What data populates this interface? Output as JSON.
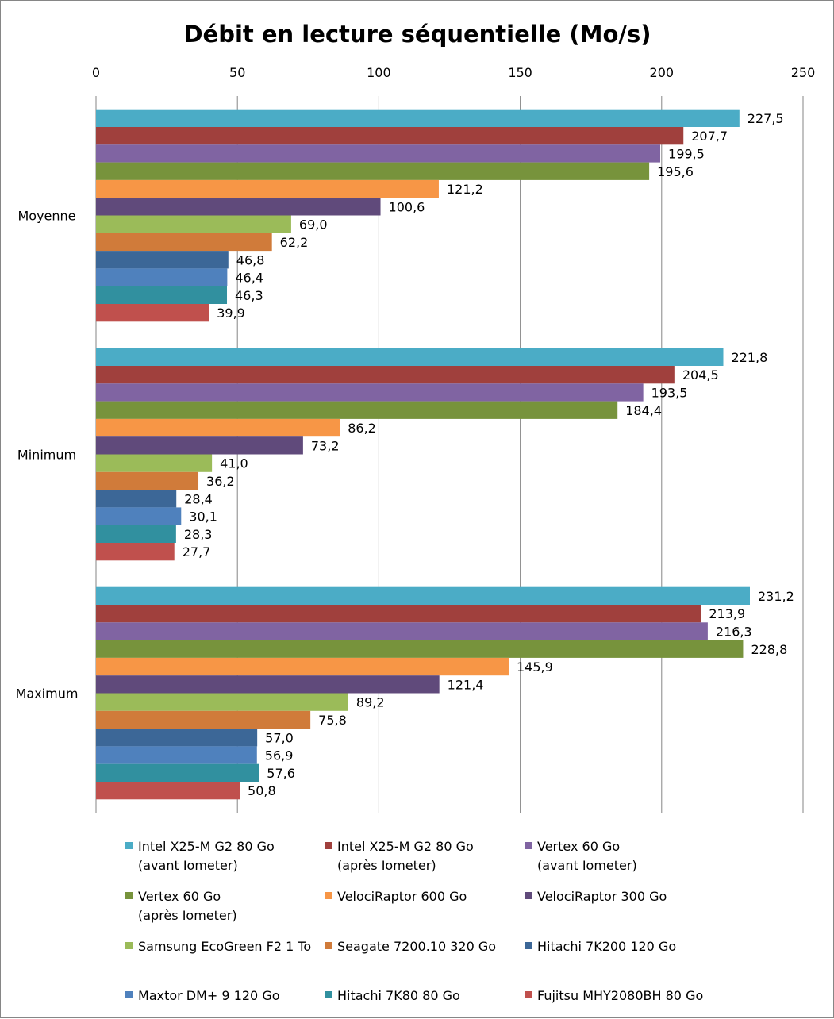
{
  "chart_data": {
    "type": "bar",
    "orientation": "horizontal",
    "title": "Débit en lecture séquentielle (Mo/s)",
    "xlim": [
      0,
      250
    ],
    "x_ticks": [
      "0",
      "50",
      "100",
      "150",
      "200",
      "250"
    ],
    "x_tick_values": [
      0,
      50,
      100,
      150,
      200,
      250
    ],
    "grid": true,
    "legend_position": "bottom",
    "categories": [
      "Moyenne",
      "Minimum",
      "Maximum"
    ],
    "series": [
      {
        "name": "Intel X25-M G2 80 Go (avant Iometer)",
        "legend_lines": [
          "Intel X25-M G2 80 Go",
          "(avant Iometer)"
        ],
        "color": "#4bacc6",
        "values": [
          227.5,
          221.8,
          231.2
        ],
        "labels": [
          "227,5",
          "221,8",
          "231,2"
        ]
      },
      {
        "name": "Intel X25-M G2 80 Go (après Iometer)",
        "legend_lines": [
          "Intel X25-M G2 80 Go",
          "(après Iometer)"
        ],
        "color": "#a0403d",
        "values": [
          207.7,
          204.5,
          213.9
        ],
        "labels": [
          "207,7",
          "204,5",
          "213,9"
        ]
      },
      {
        "name": "Vertex 60 Go (avant Iometer)",
        "legend_lines": [
          "Vertex 60 Go",
          "(avant Iometer)"
        ],
        "color": "#8064a2",
        "values": [
          199.5,
          193.5,
          216.3
        ],
        "labels": [
          "199,5",
          "193,5",
          "216,3"
        ]
      },
      {
        "name": "Vertex 60 Go (après Iometer)",
        "legend_lines": [
          "Vertex 60 Go",
          "(après Iometer)"
        ],
        "color": "#77933c",
        "values": [
          195.6,
          184.4,
          228.8
        ],
        "labels": [
          "195,6",
          "184,4",
          "228,8"
        ]
      },
      {
        "name": "VelociRaptor 600 Go",
        "legend_lines": [
          "VelociRaptor 600 Go"
        ],
        "color": "#f79646",
        "values": [
          121.2,
          86.2,
          145.9
        ],
        "labels": [
          "121,2",
          "86,2",
          "145,9"
        ]
      },
      {
        "name": "VelociRaptor 300 Go",
        "legend_lines": [
          "VelociRaptor 300 Go"
        ],
        "color": "#604a7b",
        "values": [
          100.6,
          73.2,
          121.4
        ],
        "labels": [
          "100,6",
          "73,2",
          "121,4"
        ]
      },
      {
        "name": "Samsung EcoGreen F2 1 To",
        "legend_lines": [
          "Samsung EcoGreen F2 1 To"
        ],
        "color": "#9bbb59",
        "values": [
          69.0,
          41.0,
          89.2
        ],
        "labels": [
          "69,0",
          "41,0",
          "89,2"
        ]
      },
      {
        "name": "Seagate 7200.10 320 Go",
        "legend_lines": [
          "Seagate 7200.10 320 Go"
        ],
        "color": "#d07b3a",
        "values": [
          62.2,
          36.2,
          75.8
        ],
        "labels": [
          "62,2",
          "36,2",
          "75,8"
        ]
      },
      {
        "name": "Hitachi 7K200 120 Go",
        "legend_lines": [
          "Hitachi 7K200 120 Go"
        ],
        "color": "#3c6797",
        "values": [
          46.8,
          28.4,
          57.0
        ],
        "labels": [
          "46,8",
          "28,4",
          "57,0"
        ]
      },
      {
        "name": "Maxtor DM+ 9 120 Go",
        "legend_lines": [
          "Maxtor DM+ 9 120 Go"
        ],
        "color": "#4f81bd",
        "values": [
          46.4,
          30.1,
          56.9
        ],
        "labels": [
          "46,4",
          "30,1",
          "56,9"
        ]
      },
      {
        "name": "Hitachi 7K80 80 Go",
        "legend_lines": [
          "Hitachi 7K80 80 Go"
        ],
        "color": "#31909f",
        "values": [
          46.3,
          28.3,
          57.6
        ],
        "labels": [
          "46,3",
          "28,3",
          "57,6"
        ]
      },
      {
        "name": "Fujitsu MHY2080BH 80 Go",
        "legend_lines": [
          "Fujitsu MHY2080BH 80 Go"
        ],
        "color": "#c0504d",
        "values": [
          39.9,
          27.7,
          50.8
        ],
        "labels": [
          "39,9",
          "27,7",
          "50,8"
        ]
      }
    ]
  }
}
